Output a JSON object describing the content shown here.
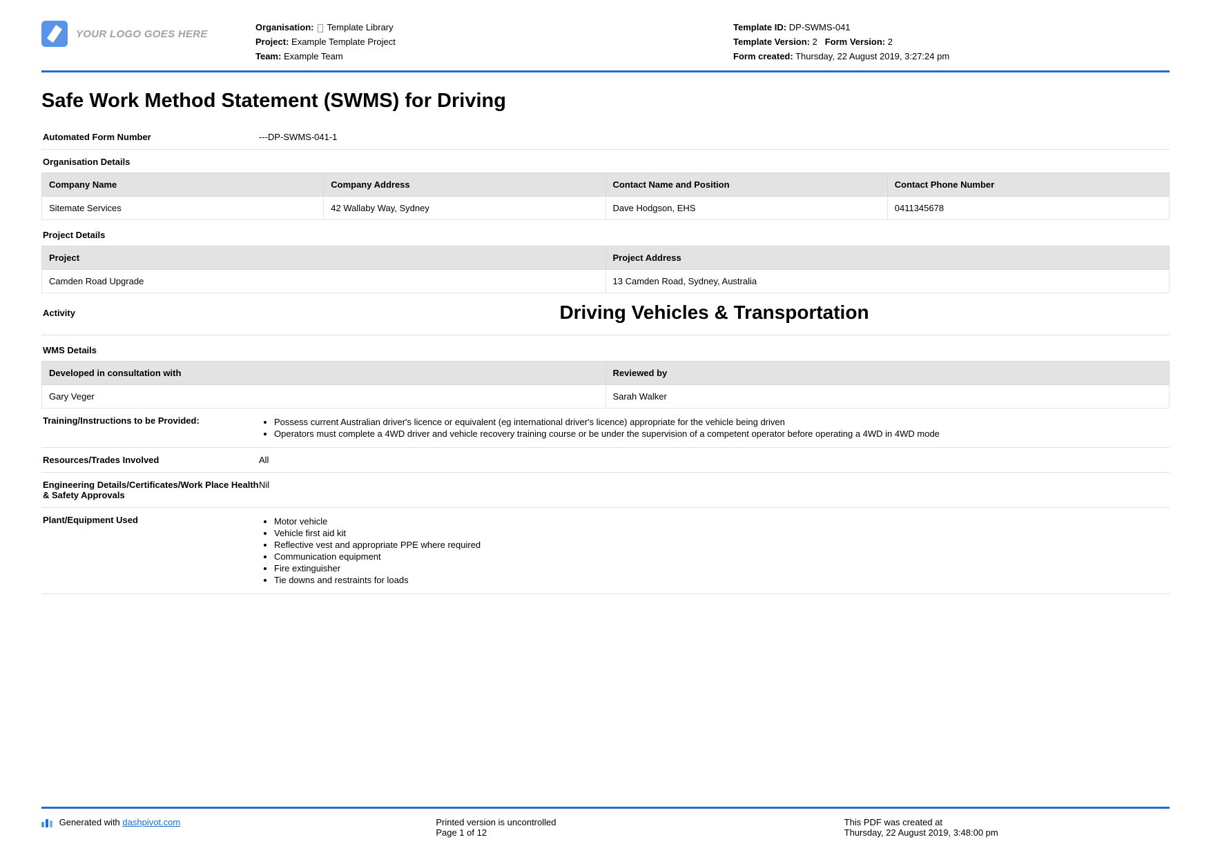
{
  "header": {
    "logo_placeholder": "YOUR LOGO GOES HERE",
    "left": {
      "organisation_label": "Organisation:",
      "organisation_value": "Template Library",
      "project_label": "Project:",
      "project_value": "Example Template Project",
      "team_label": "Team:",
      "team_value": "Example Team"
    },
    "right": {
      "template_id_label": "Template ID:",
      "template_id_value": "DP-SWMS-041",
      "template_version_label": "Template Version:",
      "template_version_value": "2",
      "form_version_label": "Form Version:",
      "form_version_value": "2",
      "form_created_label": "Form created:",
      "form_created_value": "Thursday, 22 August 2019, 3:27:24 pm"
    }
  },
  "title": "Safe Work Method Statement (SWMS) for Driving",
  "form_number": {
    "label": "Automated Form Number",
    "value": "---DP-SWMS-041-1"
  },
  "org_details": {
    "section": "Organisation Details",
    "headers": [
      "Company Name",
      "Company Address",
      "Contact Name and Position",
      "Contact Phone Number"
    ],
    "row": [
      "Sitemate Services",
      "42 Wallaby Way, Sydney",
      "Dave Hodgson, EHS",
      "0411345678"
    ]
  },
  "project_details": {
    "section": "Project Details",
    "headers": [
      "Project",
      "Project Address"
    ],
    "row": [
      "Camden Road Upgrade",
      "13 Camden Road, Sydney, Australia"
    ]
  },
  "activity": {
    "label": "Activity",
    "value": "Driving Vehicles & Transportation"
  },
  "wms_details": {
    "section": "WMS Details",
    "headers": [
      "Developed in consultation with",
      "Reviewed by"
    ],
    "row": [
      "Gary Veger",
      "Sarah Walker"
    ]
  },
  "training": {
    "label": "Training/Instructions to be Provided:",
    "items": [
      "Possess current Australian driver's licence or equivalent (eg international driver's licence) appropriate for the vehicle being driven",
      "Operators must complete a 4WD driver and vehicle recovery training course or be under the supervision of a competent operator before operating a 4WD in 4WD mode"
    ]
  },
  "resources": {
    "label": "Resources/Trades Involved",
    "value": "All"
  },
  "engineering": {
    "label": "Engineering Details/Certificates/Work Place Health & Safety Approvals",
    "value": "Nil"
  },
  "plant": {
    "label": "Plant/Equipment Used",
    "items": [
      "Motor vehicle",
      "Vehicle first aid kit",
      "Reflective vest and appropriate PPE where required",
      "Communication equipment",
      "Fire extinguisher",
      "Tie downs and restraints for loads"
    ]
  },
  "footer": {
    "generated_prefix": "Generated with ",
    "generated_link": "dashpivot.com",
    "uncontrolled": "Printed version is uncontrolled",
    "page": "Page 1 of 12",
    "created_label": "This PDF was created at",
    "created_value": "Thursday, 22 August 2019, 3:48:00 pm"
  }
}
